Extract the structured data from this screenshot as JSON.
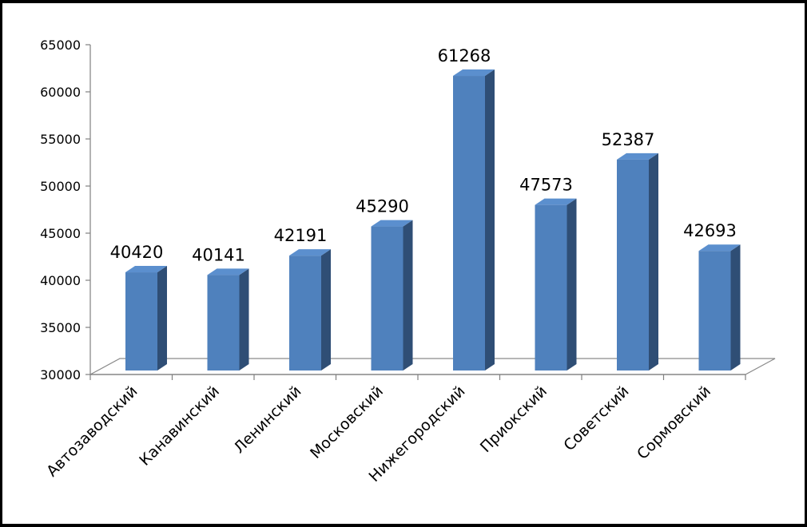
{
  "chart_data": {
    "type": "bar",
    "three_d": true,
    "categories": [
      "Автозаводский",
      "Канавинский",
      "Ленинский",
      "Московский",
      "Нижегородский",
      "Приокский",
      "Советский",
      "Сормовский"
    ],
    "values": [
      40420,
      40141,
      42191,
      45290,
      61268,
      47573,
      52387,
      42693
    ],
    "data_labels": [
      "40420",
      "40141",
      "42191",
      "45290",
      "61268",
      "47573",
      "52387",
      "42693"
    ],
    "ylim": [
      30000,
      65000
    ],
    "yticks": [
      30000,
      35000,
      40000,
      45000,
      50000,
      55000,
      60000,
      65000
    ],
    "ytick_labels": [
      "30000",
      "35000",
      "40000",
      "45000",
      "50000",
      "55000",
      "60000",
      "65000"
    ],
    "grid": false,
    "legend": "none",
    "colors": {
      "bar_front": "#4f81bd",
      "bar_side": "#2f4e75",
      "bar_top": "#5b8fce",
      "floor": "#ffffff",
      "floor_stroke": "#8a8a8a",
      "axis": "#808080"
    }
  }
}
